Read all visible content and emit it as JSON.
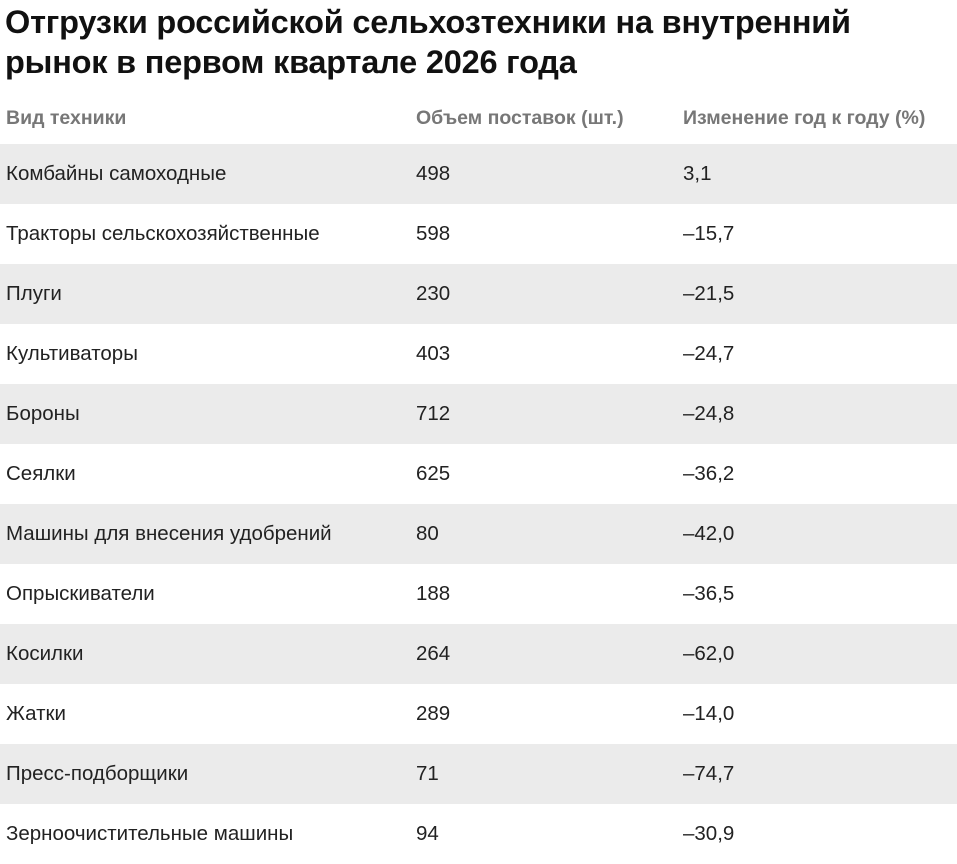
{
  "title": "Отгрузки российской сельхозтехники на внутренний рынок в первом квартале 2026 года",
  "table": {
    "headers": [
      "Вид техники",
      "Объем поставок (шт.)",
      "Изменение год к году (%)"
    ],
    "rows": [
      [
        "Комбайны самоходные",
        "498",
        "3,1"
      ],
      [
        "Тракторы сельскохозяйственные",
        "598",
        "–15,7"
      ],
      [
        "Плуги",
        "230",
        "–21,5"
      ],
      [
        "Культиваторы",
        "403",
        "–24,7"
      ],
      [
        "Бороны",
        "712",
        "–24,8"
      ],
      [
        "Сеялки",
        "625",
        "–36,2"
      ],
      [
        "Машины для внесения удобрений",
        "80",
        "–42,0"
      ],
      [
        "Опрыскиватели",
        "188",
        "–36,5"
      ],
      [
        "Косилки",
        "264",
        "–62,0"
      ],
      [
        "Жатки",
        "289",
        "–14,0"
      ],
      [
        "Пресс-подборщики",
        "71",
        "–74,7"
      ],
      [
        "Зерноочистительные машины",
        "94",
        "–30,9"
      ]
    ]
  }
}
